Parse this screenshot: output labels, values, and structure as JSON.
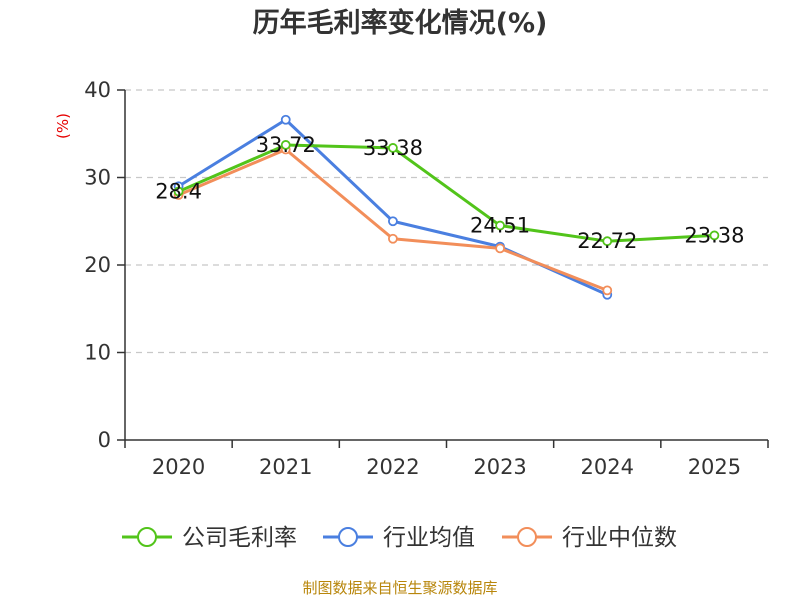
{
  "chart_data": {
    "type": "line",
    "title": "历年毛利率变化情况(%)",
    "ylabel": "(%)",
    "xlabel": "",
    "categories": [
      "2020",
      "2021",
      "2022",
      "2023",
      "2024",
      "2025"
    ],
    "ylim": [
      0,
      40
    ],
    "yticks": [
      0,
      10,
      20,
      30,
      40
    ],
    "grid": true,
    "legend_position": "bottom",
    "series": [
      {
        "name": "公司毛利率",
        "color": "#52c41a",
        "values": [
          28.4,
          33.72,
          33.38,
          24.51,
          22.72,
          23.38
        ],
        "labels": [
          "28.4",
          "33.72",
          "33.38",
          "24.51",
          "22.72",
          "23.38"
        ]
      },
      {
        "name": "行业均值",
        "color": "#4a7fe0",
        "values": [
          29.0,
          36.6,
          25.0,
          22.1,
          16.6,
          null
        ]
      },
      {
        "name": "行业中位数",
        "color": "#f28e5a",
        "values": [
          28.0,
          33.2,
          23.0,
          21.9,
          17.1,
          null
        ]
      }
    ]
  },
  "source": "制图数据来自恒生聚源数据库"
}
